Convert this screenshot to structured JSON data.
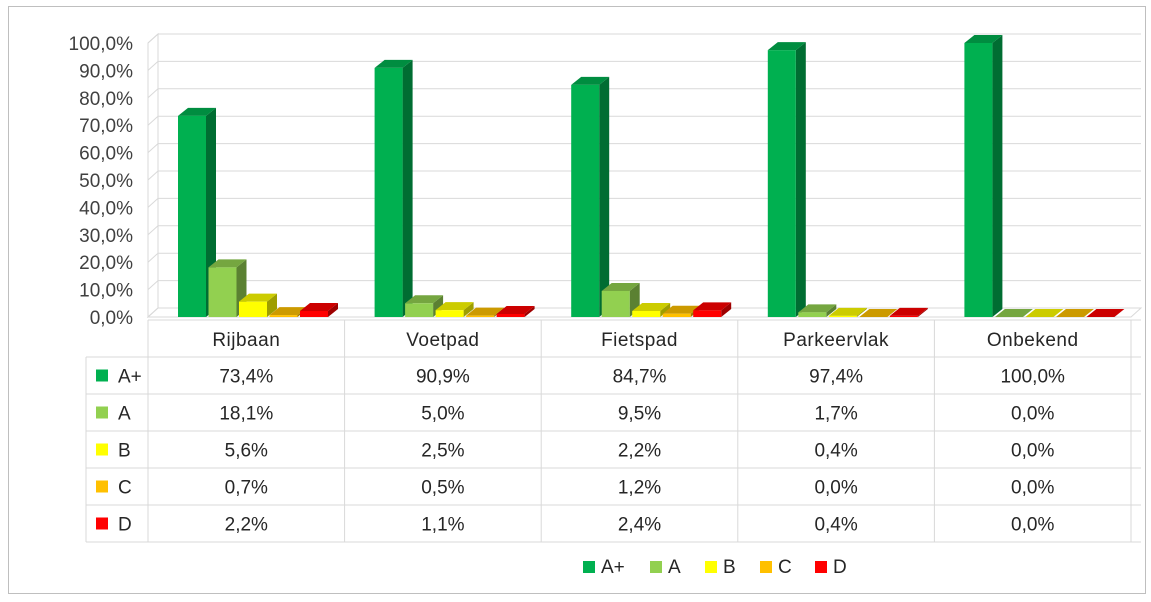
{
  "chart_data": {
    "type": "bar",
    "title": "",
    "xlabel": "",
    "ylabel": "",
    "ylim": [
      0,
      100
    ],
    "y_ticks": [
      "0,0%",
      "10,0%",
      "20,0%",
      "30,0%",
      "40,0%",
      "50,0%",
      "60,0%",
      "70,0%",
      "80,0%",
      "90,0%",
      "100,0%"
    ],
    "categories": [
      "Rijbaan",
      "Voetpad",
      "Fietspad",
      "Parkeervlak",
      "Onbekend"
    ],
    "series": [
      {
        "name": "A+",
        "color": "#00b050",
        "values": [
          73.4,
          90.9,
          84.7,
          97.4,
          100.0
        ],
        "labels": [
          "73,4%",
          "90,9%",
          "84,7%",
          "97,4%",
          "100,0%"
        ]
      },
      {
        "name": "A",
        "color": "#92d050",
        "values": [
          18.1,
          5.0,
          9.5,
          1.7,
          0.0
        ],
        "labels": [
          "18,1%",
          "5,0%",
          "9,5%",
          "1,7%",
          "0,0%"
        ]
      },
      {
        "name": "B",
        "color": "#ffff00",
        "values": [
          5.6,
          2.5,
          2.2,
          0.4,
          0.0
        ],
        "labels": [
          "5,6%",
          "2,5%",
          "2,2%",
          "0,4%",
          "0,0%"
        ]
      },
      {
        "name": "C",
        "color": "#ffc000",
        "values": [
          0.7,
          0.5,
          1.2,
          0.0,
          0.0
        ],
        "labels": [
          "0,7%",
          "0,5%",
          "1,2%",
          "0,0%",
          "0,0%"
        ]
      },
      {
        "name": "D",
        "color": "#ff0000",
        "values": [
          2.2,
          1.1,
          2.4,
          0.4,
          0.0
        ],
        "labels": [
          "2,2%",
          "1,1%",
          "2,4%",
          "0,4%",
          "0,0%"
        ]
      }
    ],
    "grid": true,
    "legend_position": "bottom",
    "data_table": true
  }
}
